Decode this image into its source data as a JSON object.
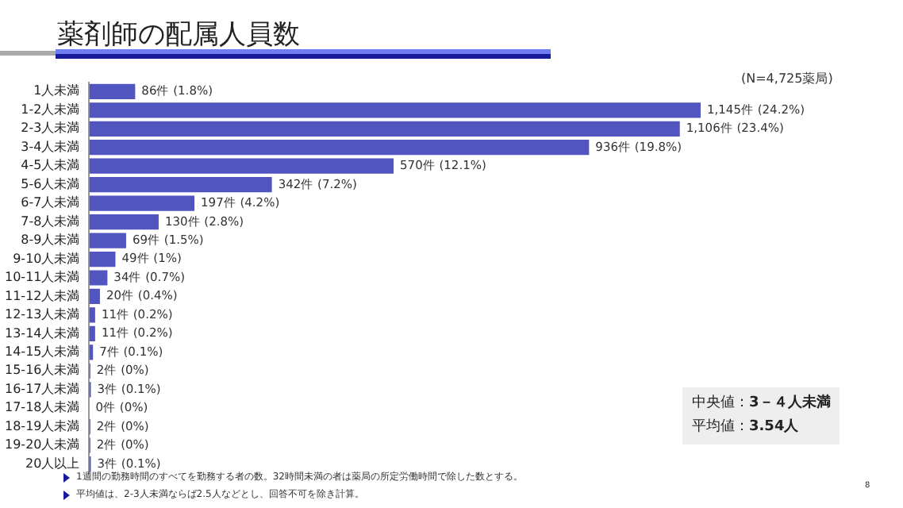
{
  "chart_data": {
    "type": "bar",
    "orientation": "horizontal",
    "title": "薬剤師の配属人員数",
    "categories": [
      "1人未満",
      "1-2人未満",
      "2-3人未満",
      "3-4人未満",
      "4-5人未満",
      "5-6人未満",
      "6-7人未満",
      "7-8人未満",
      "8-9人未満",
      "9-10人未満",
      "10-11人未満",
      "11-12人未満",
      "12-13人未満",
      "13-14人未満",
      "14-15人未満",
      "15-16人未満",
      "16-17人未満",
      "17-18人未満",
      "18-19人未満",
      "19-20人未満",
      "20人以上"
    ],
    "values": [
      86,
      1145,
      1106,
      936,
      570,
      342,
      197,
      130,
      69,
      49,
      34,
      20,
      11,
      11,
      7,
      2,
      3,
      0,
      2,
      2,
      3
    ],
    "value_labels": [
      "86件 (1.8%)",
      "1,145件 (24.2%)",
      "1,106件 (23.4%)",
      "936件 (19.8%)",
      "570件 (12.1%)",
      "342件 (7.2%)",
      "197件 (4.2%)",
      "130件 (2.8%)",
      "69件 (1.5%)",
      "49件 (1%)",
      "34件 (0.7%)",
      "20件 (0.4%)",
      "11件 (0.2%)",
      "11件 (0.2%)",
      "7件 (0.1%)",
      "2件 (0%)",
      "3件 (0.1%)",
      "0件 (0%)",
      "2件 (0%)",
      "2件 (0%)",
      "3件 (0.1%)"
    ],
    "color": "#5055c0",
    "grid": false,
    "legend": false,
    "annotations": [
      "(N=4,725薬局)",
      "中央値：3－４人未満",
      "平均値：3.54人",
      "1週間の勤務時間のすべてを勤務する者の数。32時間未満の者は薬局の所定労働時間で除した数とする。",
      "平均値は、2-3人未満ならば2.5人などとし、回答不可を除き計算。",
      "8"
    ]
  }
}
